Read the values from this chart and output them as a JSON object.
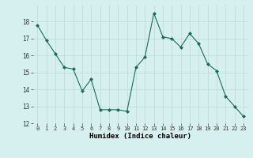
{
  "x": [
    0,
    1,
    2,
    3,
    4,
    5,
    6,
    7,
    8,
    9,
    10,
    11,
    12,
    13,
    14,
    15,
    16,
    17,
    18,
    19,
    20,
    21,
    22,
    23
  ],
  "y": [
    17.8,
    16.9,
    16.1,
    15.3,
    15.2,
    13.9,
    14.6,
    12.8,
    12.8,
    12.8,
    12.7,
    15.3,
    15.9,
    18.5,
    17.1,
    17.0,
    16.5,
    17.3,
    16.7,
    15.5,
    15.1,
    13.6,
    13.0,
    12.4
  ],
  "line_color": "#1a6b5a",
  "marker": "D",
  "marker_size": 2.0,
  "bg_color": "#d6f0ef",
  "grid_color": "#c0dcdc",
  "xlabel": "Humidex (Indice chaleur)",
  "xlim": [
    -0.5,
    23.5
  ],
  "ylim": [
    12,
    19
  ],
  "yticks": [
    12,
    13,
    14,
    15,
    16,
    17,
    18
  ],
  "xticks": [
    0,
    1,
    2,
    3,
    4,
    5,
    6,
    7,
    8,
    9,
    10,
    11,
    12,
    13,
    14,
    15,
    16,
    17,
    18,
    19,
    20,
    21,
    22,
    23
  ],
  "xtick_labels": [
    "0",
    "1",
    "2",
    "3",
    "4",
    "5",
    "6",
    "7",
    "8",
    "9",
    "10",
    "11",
    "12",
    "13",
    "14",
    "15",
    "16",
    "17",
    "18",
    "19",
    "20",
    "21",
    "22",
    "23"
  ],
  "ytick_labels": [
    "12",
    "13",
    "14",
    "15",
    "16",
    "17",
    "18"
  ]
}
